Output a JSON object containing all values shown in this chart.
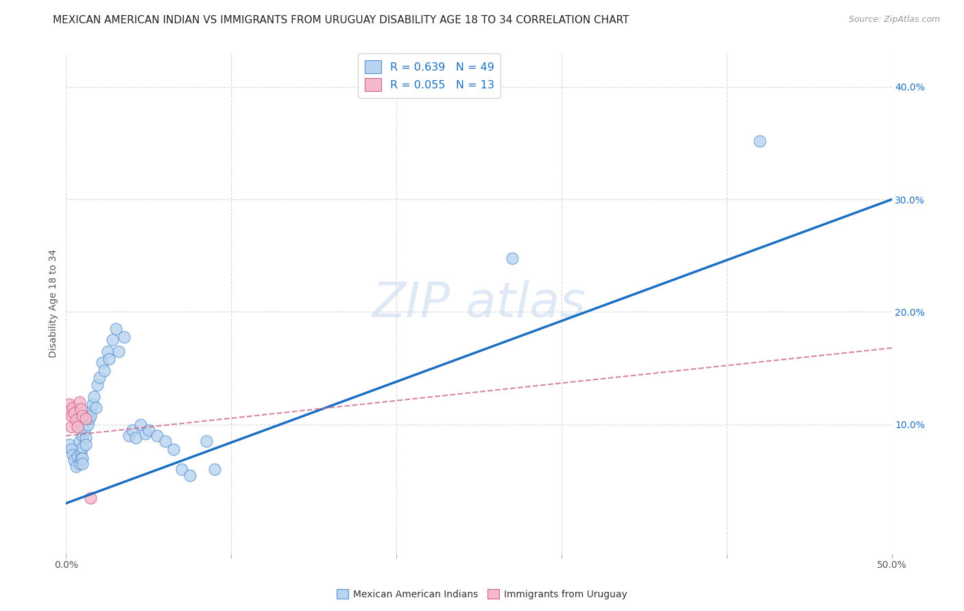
{
  "title": "MEXICAN AMERICAN INDIAN VS IMMIGRANTS FROM URUGUAY DISABILITY AGE 18 TO 34 CORRELATION CHART",
  "source": "Source: ZipAtlas.com",
  "ylabel": "Disability Age 18 to 34",
  "xlim": [
    0.0,
    0.5
  ],
  "ylim": [
    -0.015,
    0.43
  ],
  "xticks": [
    0.0,
    0.1,
    0.2,
    0.3,
    0.4,
    0.5
  ],
  "xticklabels": [
    "0.0%",
    "",
    "",
    "",
    "",
    "50.0%"
  ],
  "yticks_right": [
    0.1,
    0.2,
    0.3,
    0.4
  ],
  "yticklabels_right": [
    "10.0%",
    "20.0%",
    "30.0%",
    "40.0%"
  ],
  "blue_R": 0.639,
  "blue_N": 49,
  "pink_R": 0.055,
  "pink_N": 13,
  "blue_color": "#b8d4f0",
  "blue_edge_color": "#5590d0",
  "blue_line_color": "#1a6fc4",
  "pink_color": "#f5b8cc",
  "pink_edge_color": "#d06080",
  "pink_line_color": "#cc6688",
  "blue_scatter_x": [
    0.002,
    0.003,
    0.004,
    0.005,
    0.006,
    0.007,
    0.008,
    0.008,
    0.009,
    0.009,
    0.01,
    0.01,
    0.01,
    0.01,
    0.011,
    0.012,
    0.012,
    0.013,
    0.014,
    0.015,
    0.015,
    0.016,
    0.017,
    0.018,
    0.019,
    0.02,
    0.022,
    0.023,
    0.025,
    0.026,
    0.028,
    0.03,
    0.032,
    0.035,
    0.038,
    0.04,
    0.042,
    0.045,
    0.048,
    0.05,
    0.055,
    0.06,
    0.065,
    0.07,
    0.075,
    0.085,
    0.09,
    0.27,
    0.42
  ],
  "blue_scatter_y": [
    0.082,
    0.078,
    0.073,
    0.068,
    0.063,
    0.072,
    0.065,
    0.085,
    0.075,
    0.07,
    0.09,
    0.08,
    0.07,
    0.065,
    0.095,
    0.088,
    0.082,
    0.1,
    0.105,
    0.112,
    0.108,
    0.118,
    0.125,
    0.115,
    0.135,
    0.142,
    0.155,
    0.148,
    0.165,
    0.158,
    0.175,
    0.185,
    0.165,
    0.178,
    0.09,
    0.095,
    0.088,
    0.1,
    0.092,
    0.095,
    0.09,
    0.085,
    0.078,
    0.06,
    0.055,
    0.085,
    0.06,
    0.248,
    0.352
  ],
  "pink_scatter_x": [
    0.002,
    0.002,
    0.003,
    0.003,
    0.004,
    0.005,
    0.006,
    0.007,
    0.008,
    0.009,
    0.01,
    0.012,
    0.015
  ],
  "pink_scatter_y": [
    0.118,
    0.112,
    0.108,
    0.098,
    0.115,
    0.11,
    0.104,
    0.098,
    0.12,
    0.114,
    0.108,
    0.105,
    0.035
  ],
  "blue_line_x": [
    0.0,
    0.5
  ],
  "blue_line_y": [
    0.03,
    0.3
  ],
  "pink_line_x": [
    0.0,
    0.5
  ],
  "pink_line_y": [
    0.09,
    0.168
  ],
  "background_color": "#ffffff",
  "grid_color": "#d8d8d8",
  "title_fontsize": 11,
  "label_fontsize": 10,
  "tick_fontsize": 10
}
